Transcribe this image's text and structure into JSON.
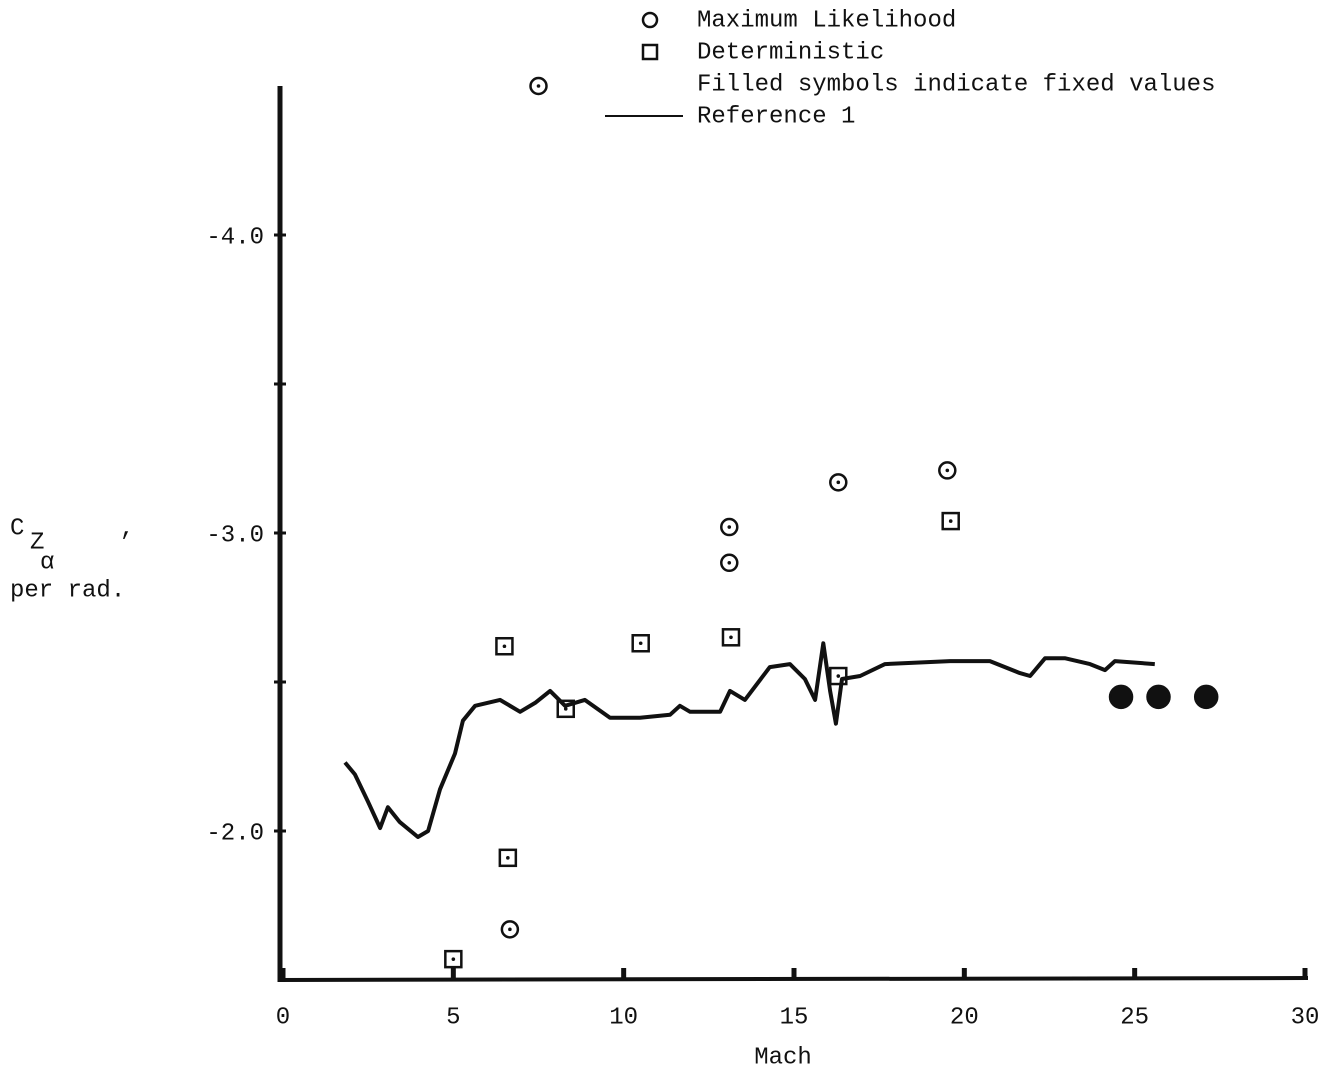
{
  "chart_data": {
    "type": "scatter",
    "x_label": "Mach",
    "y_label": {
      "symbol": "C",
      "subscript": "Z",
      "subsubscript": "α",
      "mark": ",",
      "unit": "per rad."
    },
    "xlim": [
      0,
      30
    ],
    "ylim": [
      -1.5,
      -4.5
    ],
    "xticks": [
      0,
      5,
      10,
      15,
      20,
      25,
      30
    ],
    "yticks": [
      {
        "value": -4,
        "label": "-4.0"
      },
      {
        "value": -3,
        "label": "-3.0"
      },
      {
        "value": -2,
        "label": "-2.0"
      }
    ],
    "y_minor_ticks": [
      -3.5,
      -2.5
    ],
    "legend_note": "Filled symbols indicate fixed values",
    "series": [
      {
        "name": "Maximum Likelihood",
        "marker": "circle",
        "color": "#111111",
        "x": [
          7.5,
          13.1,
          13.1,
          16.3,
          19.5,
          6.66
        ],
        "values": [
          -4.5,
          -3.02,
          -2.9,
          -3.17,
          -3.21,
          -1.67
        ]
      },
      {
        "name": "Deterministic",
        "marker": "square",
        "color": "#111111",
        "x": [
          6.5,
          10.5,
          13.15,
          8.3,
          16.3,
          19.6,
          6.6,
          5.0
        ],
        "values": [
          -2.62,
          -2.63,
          -2.65,
          -2.41,
          -2.52,
          -3.04,
          -1.91,
          -1.57
        ]
      },
      {
        "marker": "circle",
        "filled": true,
        "color": "#111111",
        "x": [
          24.6,
          25.7,
          27.1
        ],
        "values": [
          -2.45,
          -2.45,
          -2.45
        ]
      },
      {
        "name": "Reference 1",
        "marker": "line",
        "color": "#111111",
        "x": [
          1.82,
          2.11,
          2.49,
          2.85,
          3.08,
          3.43,
          3.96,
          4.26,
          4.61,
          5.05,
          5.28,
          5.64,
          6.37,
          6.96,
          7.4,
          7.84,
          8.28,
          8.86,
          9.6,
          10.48,
          11.36,
          11.65,
          11.95,
          12.83,
          13.12,
          13.56,
          14.29,
          14.88,
          15.32,
          15.62,
          15.86,
          16.06,
          16.23,
          16.41,
          16.94,
          17.67,
          19.58,
          20.75,
          21.63,
          21.93,
          22.37,
          22.95,
          23.69,
          24.13,
          24.42,
          25.59
        ],
        "values": [
          -2.23,
          -2.19,
          -2.1,
          -2.01,
          -2.08,
          -2.03,
          -1.98,
          -2.0,
          -2.14,
          -2.26,
          -2.37,
          -2.42,
          -2.44,
          -2.4,
          -2.43,
          -2.47,
          -2.42,
          -2.44,
          -2.38,
          -2.38,
          -2.39,
          -2.42,
          -2.4,
          -2.4,
          -2.47,
          -2.44,
          -2.55,
          -2.56,
          -2.51,
          -2.44,
          -2.63,
          -2.47,
          -2.36,
          -2.51,
          -2.52,
          -2.56,
          -2.57,
          -2.57,
          -2.53,
          -2.52,
          -2.58,
          -2.58,
          -2.56,
          -2.54,
          -2.57,
          -2.56
        ]
      }
    ]
  }
}
